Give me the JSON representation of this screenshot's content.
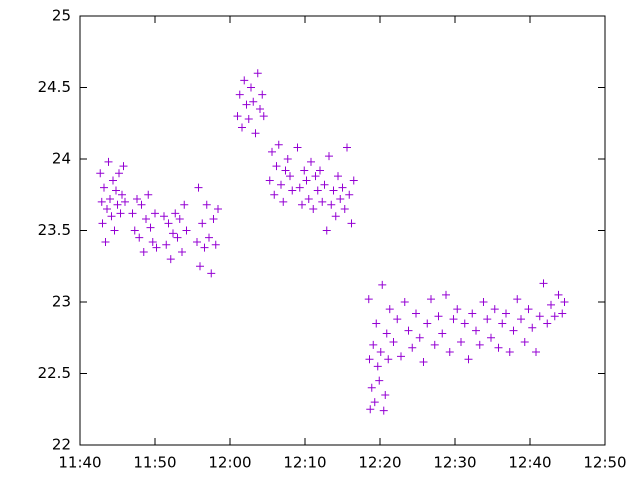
{
  "chart_data": {
    "type": "scatter",
    "color": "#9400d3",
    "marker": "+",
    "x": [
      702.7,
      702.9,
      703.0,
      703.2,
      703.4,
      703.6,
      703.8,
      704.0,
      704.2,
      704.4,
      704.6,
      704.8,
      705.0,
      705.2,
      705.4,
      705.6,
      705.8,
      706.0,
      707.0,
      707.3,
      707.6,
      707.9,
      708.2,
      708.5,
      708.8,
      709.1,
      709.4,
      709.7,
      710.0,
      710.2,
      711.2,
      711.5,
      711.8,
      712.1,
      712.4,
      712.7,
      713.0,
      713.3,
      713.6,
      713.9,
      714.2,
      715.6,
      715.8,
      716.0,
      716.3,
      716.6,
      716.9,
      717.2,
      717.5,
      717.8,
      718.1,
      718.4,
      721.0,
      721.3,
      721.6,
      721.9,
      722.2,
      722.5,
      722.8,
      723.1,
      723.4,
      723.7,
      724.0,
      724.3,
      724.5,
      725.3,
      725.6,
      725.9,
      726.2,
      726.5,
      726.8,
      727.1,
      727.4,
      727.7,
      728.0,
      728.3,
      729.0,
      729.3,
      729.6,
      729.9,
      730.2,
      730.5,
      730.8,
      731.1,
      731.4,
      731.7,
      732.0,
      732.3,
      732.6,
      732.9,
      733.2,
      733.5,
      733.8,
      734.1,
      734.4,
      734.7,
      735.0,
      735.3,
      735.6,
      735.9,
      736.2,
      736.5,
      738.5,
      738.6,
      738.7,
      738.9,
      739.1,
      739.3,
      739.5,
      739.7,
      739.9,
      740.1,
      740.3,
      740.5,
      740.7,
      740.9,
      741.1,
      741.3,
      741.8,
      742.3,
      742.8,
      743.3,
      743.8,
      744.3,
      744.8,
      745.3,
      745.8,
      746.3,
      746.8,
      747.3,
      747.8,
      748.3,
      748.8,
      749.3,
      749.8,
      750.3,
      750.8,
      751.3,
      751.8,
      752.3,
      752.8,
      753.3,
      753.8,
      754.3,
      754.8,
      755.3,
      755.8,
      756.3,
      756.8,
      757.3,
      757.8,
      758.3,
      758.8,
      759.3,
      759.8,
      760.3,
      760.8,
      761.3,
      761.8,
      762.3,
      762.8,
      763.3,
      763.8,
      764.3,
      764.6
    ],
    "values": [
      23.9,
      23.7,
      23.55,
      23.8,
      23.42,
      23.65,
      23.98,
      23.72,
      23.6,
      23.85,
      23.5,
      23.78,
      23.68,
      23.9,
      23.62,
      23.75,
      23.95,
      23.7,
      23.62,
      23.5,
      23.72,
      23.45,
      23.68,
      23.35,
      23.58,
      23.75,
      23.52,
      23.42,
      23.62,
      23.38,
      23.6,
      23.4,
      23.55,
      23.3,
      23.48,
      23.62,
      23.45,
      23.58,
      23.35,
      23.68,
      23.5,
      23.42,
      23.8,
      23.25,
      23.55,
      23.38,
      23.68,
      23.45,
      23.2,
      23.58,
      23.4,
      23.65,
      24.3,
      24.45,
      24.22,
      24.55,
      24.38,
      24.28,
      24.5,
      24.4,
      24.18,
      24.6,
      24.35,
      24.45,
      24.3,
      23.85,
      24.05,
      23.75,
      23.95,
      24.1,
      23.82,
      23.7,
      23.92,
      24.0,
      23.88,
      23.78,
      24.08,
      23.8,
      23.68,
      23.92,
      23.85,
      23.72,
      23.98,
      23.65,
      23.88,
      23.78,
      23.92,
      23.7,
      23.82,
      23.5,
      24.02,
      23.68,
      23.78,
      23.6,
      23.88,
      23.72,
      23.8,
      23.65,
      24.08,
      23.75,
      23.55,
      23.85,
      23.02,
      22.6,
      22.25,
      22.4,
      22.7,
      22.3,
      22.85,
      22.55,
      22.45,
      22.65,
      23.12,
      22.24,
      22.35,
      22.78,
      22.6,
      22.95,
      22.72,
      22.88,
      22.62,
      23.0,
      22.8,
      22.68,
      22.92,
      22.75,
      22.58,
      22.85,
      23.02,
      22.7,
      22.9,
      22.78,
      23.05,
      22.65,
      22.88,
      22.95,
      22.72,
      22.85,
      22.6,
      22.92,
      22.8,
      22.7,
      23.0,
      22.88,
      22.75,
      22.95,
      22.68,
      22.85,
      22.92,
      22.65,
      22.8,
      23.02,
      22.88,
      22.72,
      22.95,
      22.82,
      22.65,
      22.9,
      23.13,
      22.85,
      22.98,
      22.9,
      23.05,
      22.92,
      23.0
    ],
    "xlim": [
      700,
      770
    ],
    "xticks": [
      {
        "value": 700,
        "label": "11:40"
      },
      {
        "value": 710,
        "label": "11:50"
      },
      {
        "value": 720,
        "label": "12:00"
      },
      {
        "value": 730,
        "label": "12:10"
      },
      {
        "value": 740,
        "label": "12:20"
      },
      {
        "value": 750,
        "label": "12:30"
      },
      {
        "value": 760,
        "label": "12:40"
      },
      {
        "value": 770,
        "label": "12:50"
      }
    ],
    "ylim": [
      22,
      25
    ],
    "yticks": [
      22,
      22.5,
      23,
      23.5,
      24,
      24.5,
      25
    ]
  }
}
